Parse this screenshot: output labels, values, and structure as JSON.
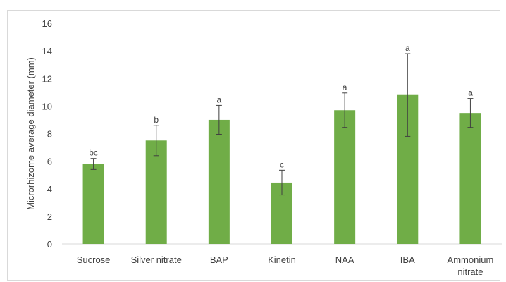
{
  "chart_data": {
    "type": "bar",
    "title": "",
    "xlabel": "",
    "ylabel": "Microrhizome average diameter (mm)",
    "ylim": [
      0,
      16
    ],
    "yticks": [
      0,
      2,
      4,
      6,
      8,
      10,
      12,
      14,
      16
    ],
    "grid": false,
    "legend": "none",
    "bar_color": "#70ad47",
    "categories": [
      "Sucrose",
      "Silver nitrate",
      "BAP",
      "Kinetin",
      "NAA",
      "IBA",
      "Ammonium nitrate"
    ],
    "values": [
      5.8,
      7.5,
      9.0,
      4.45,
      9.7,
      10.8,
      9.5
    ],
    "error": [
      0.4,
      1.1,
      1.05,
      0.9,
      1.25,
      3.0,
      1.05
    ],
    "significance_labels": [
      "bc",
      "b",
      "a",
      "c",
      "a",
      "a",
      "a"
    ]
  }
}
